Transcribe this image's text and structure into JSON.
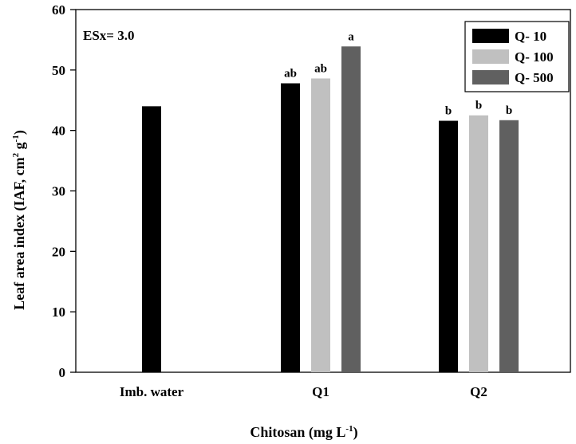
{
  "chart_data": {
    "type": "bar",
    "categories": [
      "Imb. water",
      "Q1",
      "Q2"
    ],
    "series": [
      {
        "name": "Q- 10",
        "color": "#000000",
        "values": [
          44.0,
          47.8,
          41.6
        ],
        "labels": [
          "",
          "ab",
          "b"
        ]
      },
      {
        "name": "Q- 100",
        "color": "#c0c0c0",
        "values": [
          null,
          48.6,
          42.5
        ],
        "labels": [
          "",
          "ab",
          "b"
        ]
      },
      {
        "name": "Q- 500",
        "color": "#606060",
        "values": [
          null,
          53.9,
          41.7
        ],
        "labels": [
          "",
          "a",
          "b"
        ]
      }
    ],
    "annotation": "ESx= 3.0",
    "xlabel": "Chitosan (mg L",
    "xlabel_sup": "-1",
    "xlabel_end": ")",
    "ylabel": "Leaf area index (IAF, cm",
    "ylabel_sup1": "2",
    "ylabel_mid": " g",
    "ylabel_sup2": "-1",
    "ylabel_end": ")",
    "ylim": [
      0,
      60
    ],
    "yticks": [
      0,
      10,
      20,
      30,
      40,
      50,
      60
    ],
    "legend_position": "top-right",
    "grid": false
  }
}
